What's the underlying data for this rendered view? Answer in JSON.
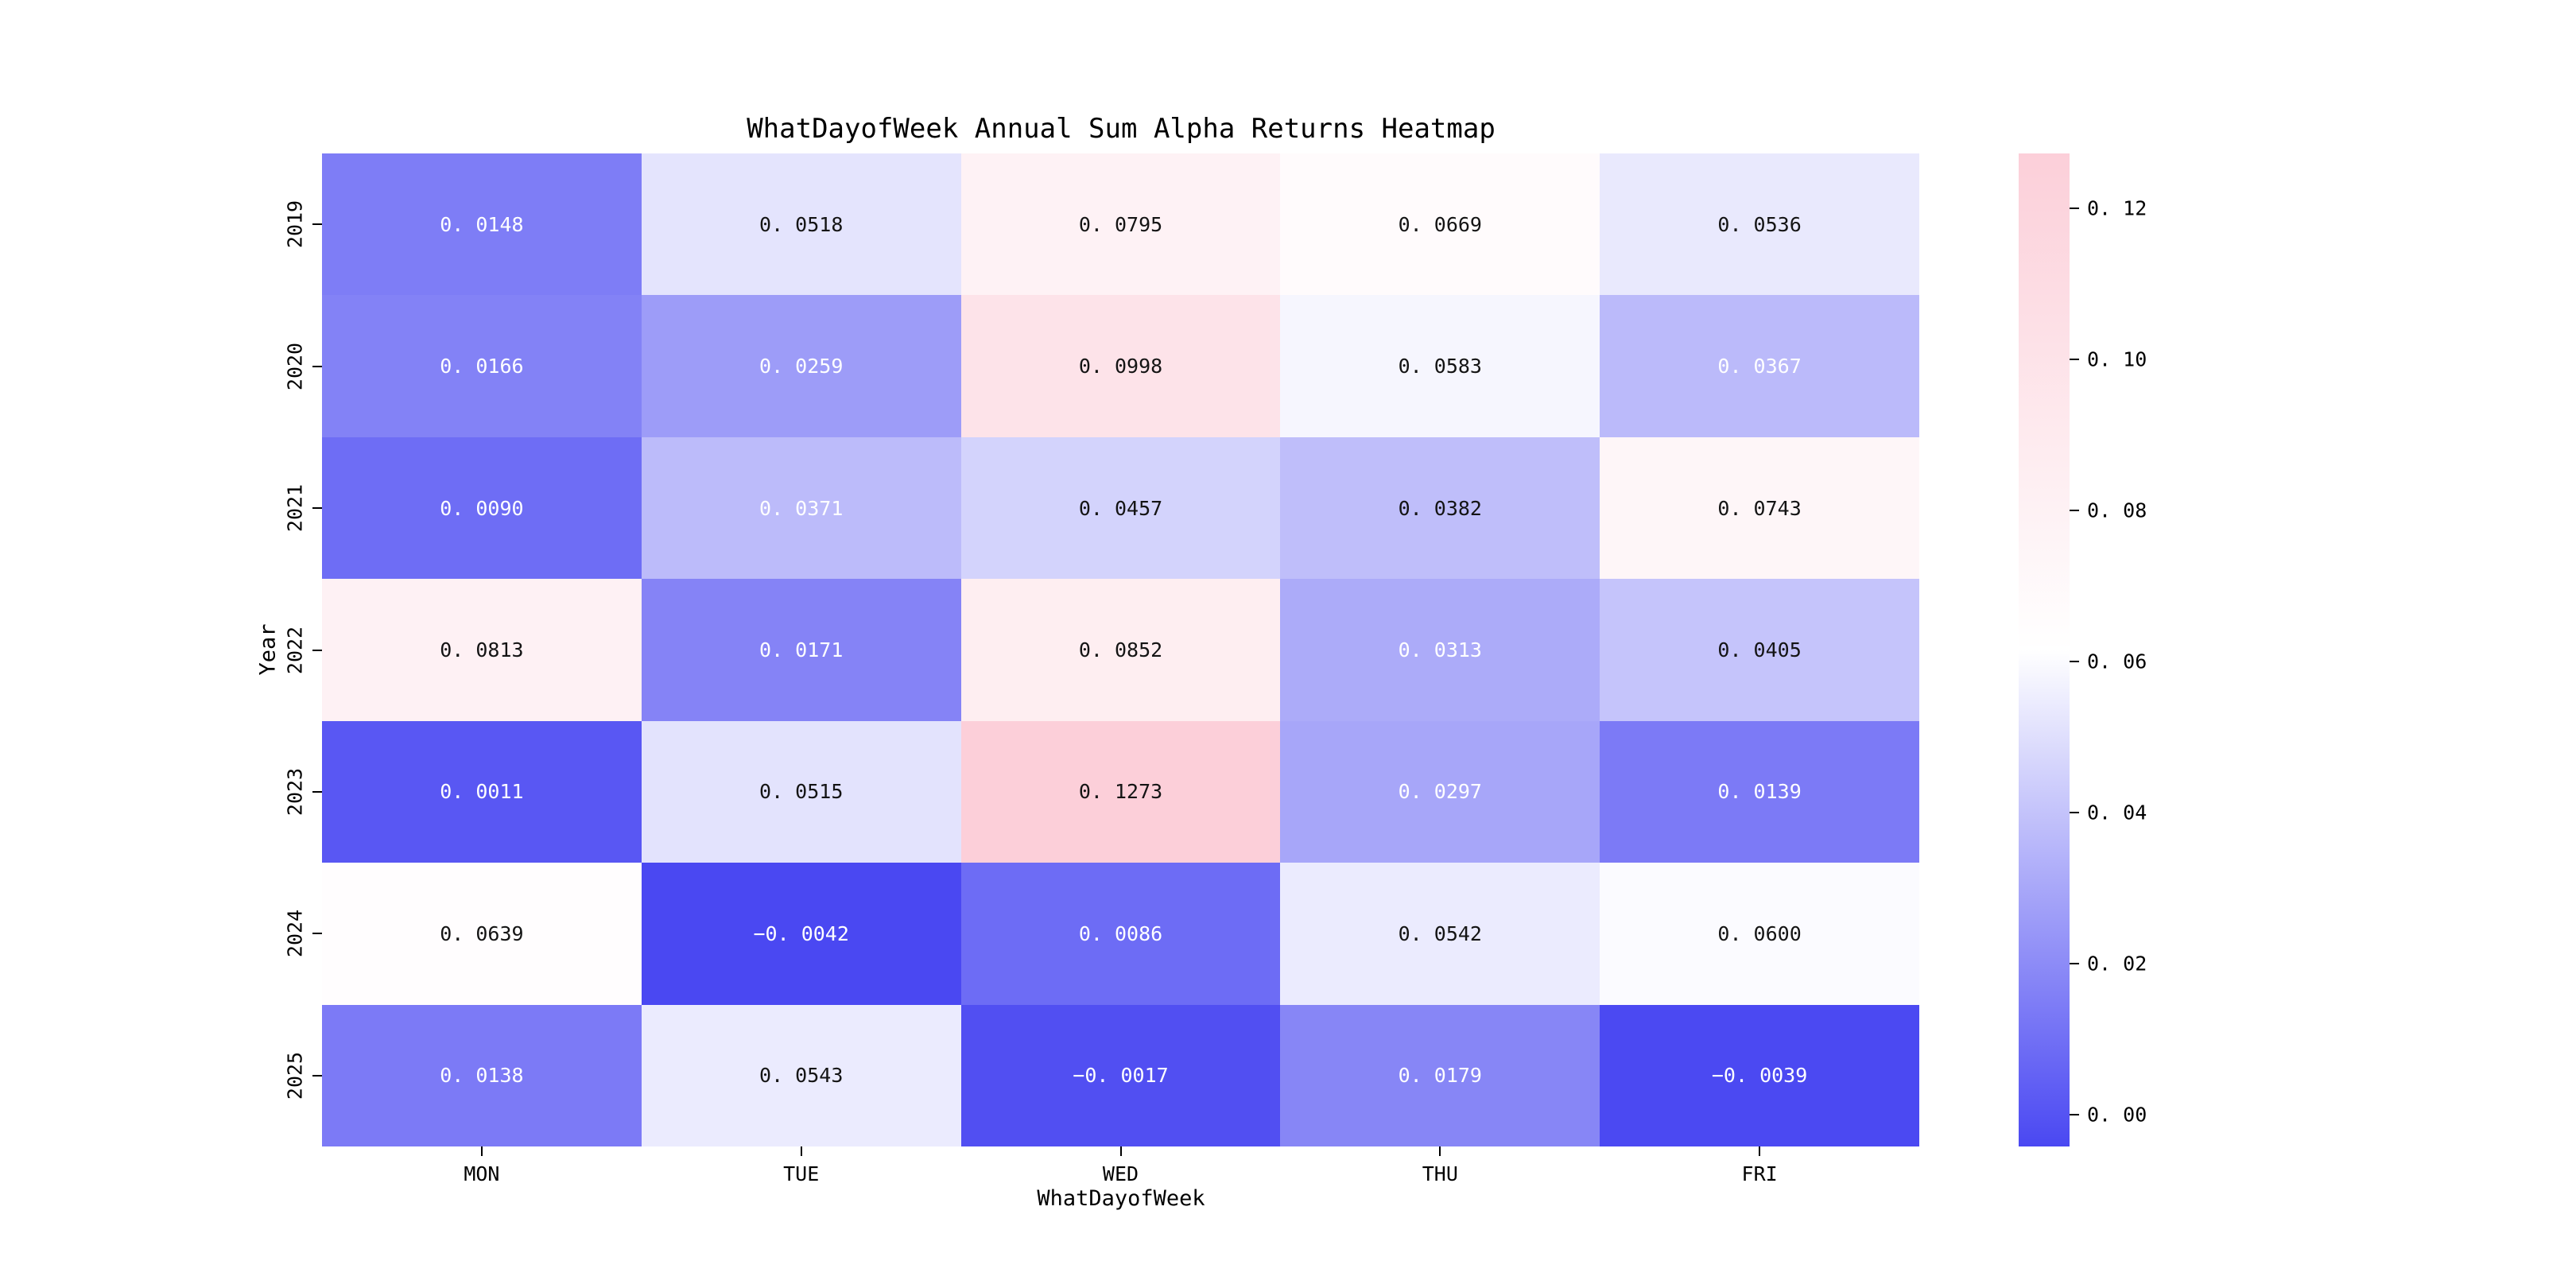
{
  "title": "WhatDayofWeek Annual Sum Alpha Returns Heatmap",
  "chart_data": {
    "type": "heatmap",
    "title": "WhatDayofWeek Annual Sum Alpha Returns Heatmap",
    "xlabel": "WhatDayofWeek",
    "ylabel": "Year",
    "columns": [
      "MON",
      "TUE",
      "WED",
      "THU",
      "FRI"
    ],
    "rows": [
      "2019",
      "2020",
      "2021",
      "2022",
      "2023",
      "2024",
      "2025"
    ],
    "values": [
      [
        0.0148,
        0.0518,
        0.0795,
        0.0669,
        0.0536
      ],
      [
        0.0166,
        0.0259,
        0.0998,
        0.0583,
        0.0367
      ],
      [
        0.009,
        0.0371,
        0.0457,
        0.0382,
        0.0743
      ],
      [
        0.0813,
        0.0171,
        0.0852,
        0.0313,
        0.0405
      ],
      [
        0.0011,
        0.0515,
        0.1273,
        0.0297,
        0.0139
      ],
      [
        0.0639,
        -0.0042,
        0.0086,
        0.0542,
        0.06
      ],
      [
        0.0138,
        0.0543,
        -0.0017,
        0.0179,
        -0.0039
      ]
    ],
    "cell_labels": [
      [
        "0. 0148",
        "0. 0518",
        "0. 0795",
        "0. 0669",
        "0. 0536"
      ],
      [
        "0. 0166",
        "0. 0259",
        "0. 0998",
        "0. 0583",
        "0. 0367"
      ],
      [
        "0. 0090",
        "0. 0371",
        "0. 0457",
        "0. 0382",
        "0. 0743"
      ],
      [
        "0. 0813",
        "0. 0171",
        "0. 0852",
        "0. 0313",
        "0. 0405"
      ],
      [
        "0. 0011",
        "0. 0515",
        "0. 1273",
        "0. 0297",
        "0. 0139"
      ],
      [
        "0. 0639",
        "−0. 0042",
        "0. 0086",
        "0. 0542",
        "0. 0600"
      ],
      [
        "0. 0138",
        "0. 0543",
        "−0. 0017",
        "0. 0179",
        "−0. 0039"
      ]
    ],
    "cell_text_colors": [
      [
        "w",
        "b",
        "b",
        "b",
        "b"
      ],
      [
        "w",
        "w",
        "b",
        "b",
        "w"
      ],
      [
        "w",
        "w",
        "b",
        "b",
        "b"
      ],
      [
        "b",
        "w",
        "b",
        "w",
        "b"
      ],
      [
        "w",
        "b",
        "b",
        "w",
        "w"
      ],
      [
        "b",
        "w",
        "w",
        "b",
        "b"
      ],
      [
        "w",
        "b",
        "w",
        "w",
        "w"
      ]
    ],
    "vmin": -0.0042,
    "vmax": 0.1273,
    "grid": false,
    "colormap": {
      "low": "#4A48F2",
      "mid": "#FFFFFF",
      "high": "#FCCFD9",
      "annot_dark": "#141414",
      "annot_light": "#FFFFFF"
    },
    "colorbar": {
      "position": "right",
      "tick_values": [
        0.12,
        0.1,
        0.08,
        0.06,
        0.04,
        0.02,
        0.0
      ],
      "tick_labels": [
        "0. 12",
        "0. 10",
        "0. 08",
        "0. 06",
        "0. 04",
        "0. 02",
        "0. 00"
      ]
    }
  }
}
